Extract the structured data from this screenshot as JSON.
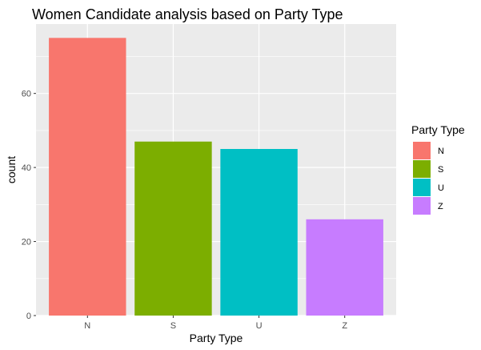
{
  "chart_data": {
    "type": "bar",
    "title": "Women Candidate analysis based on Party Type",
    "xlabel": "Party Type",
    "ylabel": "count",
    "categories": [
      "N",
      "S",
      "U",
      "Z"
    ],
    "values": [
      75,
      47,
      45,
      26
    ],
    "colors": [
      "#F8766D",
      "#7CAE00",
      "#00BFC4",
      "#C77CFF"
    ],
    "ylim": [
      0,
      78.75
    ],
    "yticks": [
      0,
      20,
      40,
      60
    ],
    "grid": true,
    "background": "#EBEBEB",
    "gridline_color": "#ffffff",
    "legend": {
      "title": "Party Type",
      "placement": "right",
      "items": [
        "N",
        "S",
        "U",
        "Z"
      ]
    }
  }
}
